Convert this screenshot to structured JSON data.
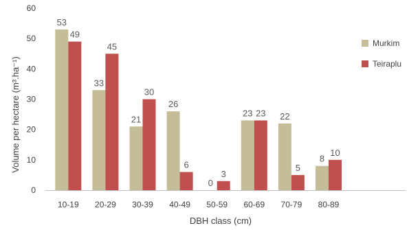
{
  "chart_data": {
    "type": "bar",
    "categories": [
      "10-19",
      "20-29",
      "30-39",
      "40-49",
      "50-59",
      "60-69",
      "70-79",
      "80-89"
    ],
    "series": [
      {
        "name": "Murkim",
        "values": [
          53,
          33,
          21,
          26,
          0,
          23,
          22,
          8
        ],
        "color": "#C4BD97"
      },
      {
        "name": "Teiraplu",
        "values": [
          49,
          45,
          30,
          6,
          3,
          23,
          5,
          10
        ],
        "color": "#C0504D"
      }
    ],
    "data_labels": [
      [
        "53",
        "33",
        "21",
        "26",
        "0",
        "23",
        "22",
        "8"
      ],
      [
        "49",
        "45",
        "30",
        "6",
        "3",
        "23",
        "5",
        "10"
      ]
    ],
    "xlabel": "DBH class (cm)",
    "ylabel": "Volume per hectare (m³.ha⁻¹)",
    "ylim": [
      0,
      60
    ],
    "yticks": [
      "0",
      "10",
      "20",
      "30",
      "40",
      "50",
      "60"
    ],
    "grid": false,
    "legend_position": "right"
  }
}
